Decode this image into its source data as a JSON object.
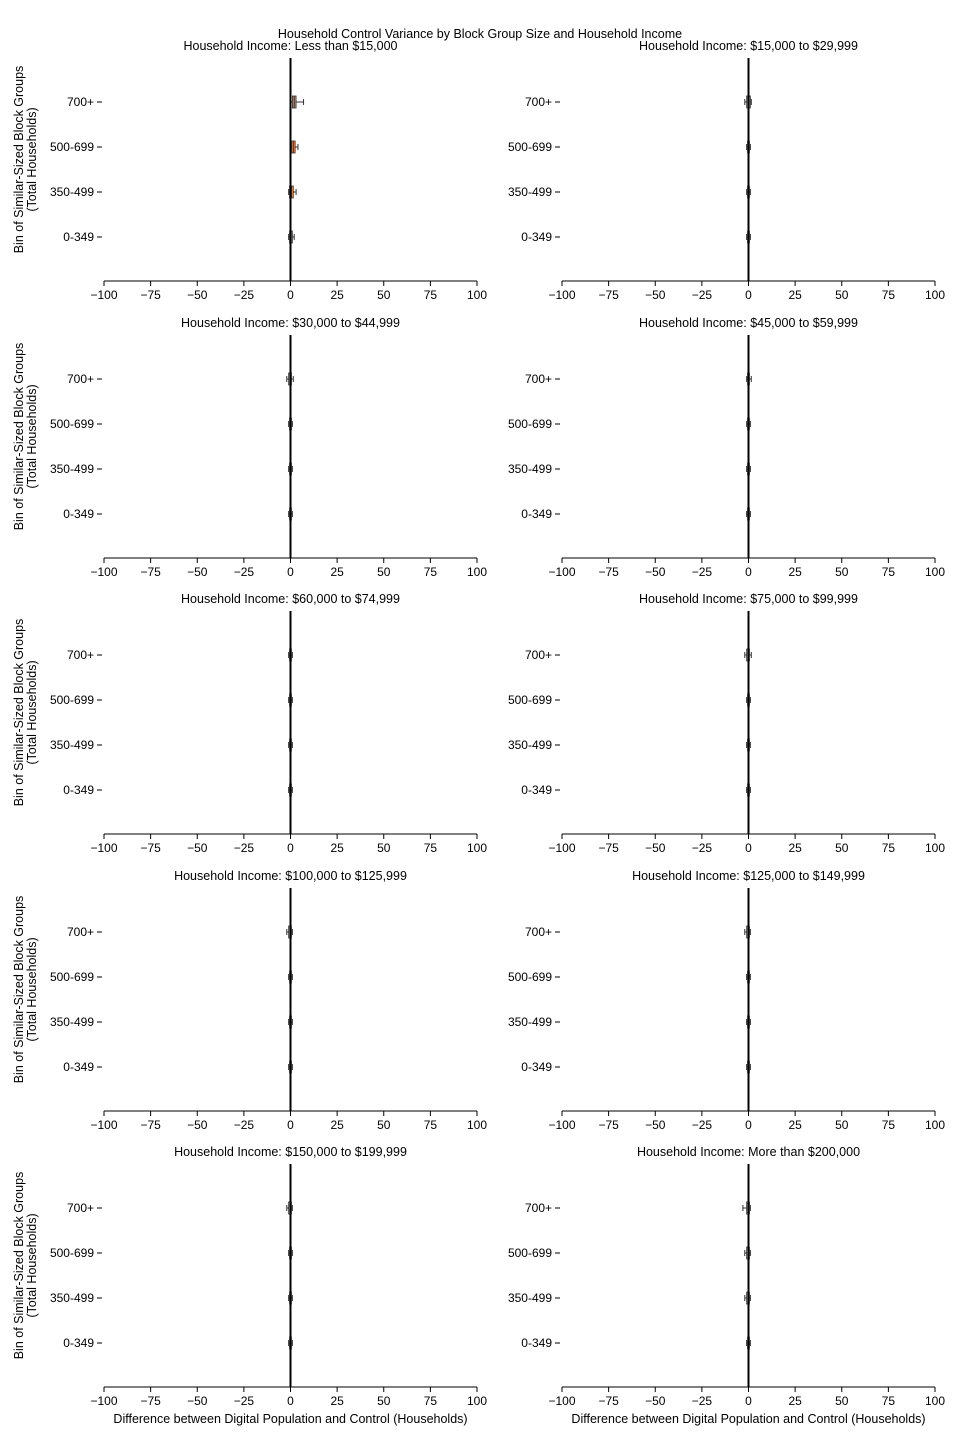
{
  "figure": {
    "suptitle": "Household Control Variance by Block Group Size and Household Income"
  },
  "chart_data": {
    "type": "boxplot",
    "orientation": "horizontal",
    "xlabel": "Difference between Digital Population and Control (Households)",
    "ylabel": "Bin of Similar-Sized Block Groups\n(Total Households)",
    "xlim": [
      -100,
      100
    ],
    "xticks": [
      -100,
      -75,
      -50,
      -25,
      0,
      25,
      50,
      75,
      100
    ],
    "categories": [
      "0-349",
      "350-499",
      "500-699",
      "700+"
    ],
    "grid": false,
    "colors": {
      "box_fill": "#dd8452",
      "box_edge": "#333333",
      "zero_line": "#000000"
    },
    "panels": [
      {
        "title": "Household Income: Less than $15,000",
        "boxes": [
          {
            "category": "0-349",
            "whislo": -1,
            "q1": -0.5,
            "med": 0.3,
            "q3": 1,
            "whishi": 2
          },
          {
            "category": "350-499",
            "whislo": -1,
            "q1": -0.5,
            "med": 0.5,
            "q3": 1.5,
            "whishi": 3
          },
          {
            "category": "500-699",
            "whislo": 0,
            "q1": 0.5,
            "med": 1.5,
            "q3": 2.5,
            "whishi": 4
          },
          {
            "category": "700+",
            "whislo": 0,
            "q1": 1,
            "med": 2,
            "q3": 3,
            "whishi": 7
          }
        ]
      },
      {
        "title": "Household Income: $15,000 to $29,999",
        "boxes": [
          {
            "category": "0-349",
            "whislo": -1,
            "q1": -0.5,
            "med": 0,
            "q3": 0.5,
            "whishi": 1
          },
          {
            "category": "350-499",
            "whislo": -1,
            "q1": -0.5,
            "med": 0,
            "q3": 0.5,
            "whishi": 1
          },
          {
            "category": "500-699",
            "whislo": -1,
            "q1": -0.5,
            "med": 0,
            "q3": 0.5,
            "whishi": 1
          },
          {
            "category": "700+",
            "whislo": -2,
            "q1": -1,
            "med": 0,
            "q3": 1,
            "whishi": 1.5
          }
        ]
      },
      {
        "title": "Household Income: $30,000 to $44,999",
        "boxes": [
          {
            "category": "0-349",
            "whislo": -1,
            "q1": -0.5,
            "med": 0,
            "q3": 0.5,
            "whishi": 1
          },
          {
            "category": "350-499",
            "whislo": -1,
            "q1": -0.5,
            "med": 0,
            "q3": 0.5,
            "whishi": 1
          },
          {
            "category": "500-699",
            "whislo": -1,
            "q1": -0.5,
            "med": 0,
            "q3": 0.5,
            "whishi": 1
          },
          {
            "category": "700+",
            "whislo": -2,
            "q1": -1,
            "med": 0,
            "q3": 0.5,
            "whishi": 1.5
          }
        ]
      },
      {
        "title": "Household Income: $45,000 to $59,999",
        "boxes": [
          {
            "category": "0-349",
            "whislo": -1,
            "q1": -0.5,
            "med": 0,
            "q3": 0.5,
            "whishi": 1
          },
          {
            "category": "350-499",
            "whislo": -1,
            "q1": -0.5,
            "med": 0,
            "q3": 0.5,
            "whishi": 1
          },
          {
            "category": "500-699",
            "whislo": -1,
            "q1": -0.5,
            "med": 0,
            "q3": 0.5,
            "whishi": 1
          },
          {
            "category": "700+",
            "whislo": -1,
            "q1": -0.5,
            "med": 0,
            "q3": 0.5,
            "whishi": 1.5
          }
        ]
      },
      {
        "title": "Household Income: $60,000 to $74,999",
        "boxes": [
          {
            "category": "0-349",
            "whislo": -1,
            "q1": -0.5,
            "med": 0,
            "q3": 0.5,
            "whishi": 1
          },
          {
            "category": "350-499",
            "whislo": -1,
            "q1": -0.5,
            "med": 0,
            "q3": 0.5,
            "whishi": 1
          },
          {
            "category": "500-699",
            "whislo": -1,
            "q1": -0.5,
            "med": 0,
            "q3": 0.5,
            "whishi": 1
          },
          {
            "category": "700+",
            "whislo": -1,
            "q1": -0.5,
            "med": 0,
            "q3": 0.5,
            "whishi": 1
          }
        ]
      },
      {
        "title": "Household Income: $75,000 to $99,999",
        "boxes": [
          {
            "category": "0-349",
            "whislo": -1,
            "q1": -0.5,
            "med": 0,
            "q3": 0.5,
            "whishi": 1
          },
          {
            "category": "350-499",
            "whislo": -1,
            "q1": -0.5,
            "med": 0,
            "q3": 0.5,
            "whishi": 1
          },
          {
            "category": "500-699",
            "whislo": -1,
            "q1": -0.5,
            "med": 0,
            "q3": 0.5,
            "whishi": 1
          },
          {
            "category": "700+",
            "whislo": -2,
            "q1": -1,
            "med": 0,
            "q3": 0.5,
            "whishi": 1.5
          }
        ]
      },
      {
        "title": "Household Income: $100,000 to $125,999",
        "boxes": [
          {
            "category": "0-349",
            "whislo": -1,
            "q1": -0.5,
            "med": 0,
            "q3": 0.5,
            "whishi": 1
          },
          {
            "category": "350-499",
            "whislo": -1,
            "q1": -0.5,
            "med": 0,
            "q3": 0.5,
            "whishi": 1
          },
          {
            "category": "500-699",
            "whislo": -1,
            "q1": -0.5,
            "med": 0,
            "q3": 0.5,
            "whishi": 1
          },
          {
            "category": "700+",
            "whislo": -2,
            "q1": -1,
            "med": 0,
            "q3": 0.5,
            "whishi": 1
          }
        ]
      },
      {
        "title": "Household Income: $125,000 to $149,999",
        "boxes": [
          {
            "category": "0-349",
            "whislo": -1,
            "q1": -0.5,
            "med": 0,
            "q3": 0.5,
            "whishi": 1
          },
          {
            "category": "350-499",
            "whislo": -1,
            "q1": -0.5,
            "med": 0,
            "q3": 0.5,
            "whishi": 1
          },
          {
            "category": "500-699",
            "whislo": -1,
            "q1": -0.5,
            "med": 0,
            "q3": 0.5,
            "whishi": 1
          },
          {
            "category": "700+",
            "whislo": -2,
            "q1": -1,
            "med": 0,
            "q3": 0.5,
            "whishi": 1
          }
        ]
      },
      {
        "title": "Household Income: $150,000 to $199,999",
        "boxes": [
          {
            "category": "0-349",
            "whislo": -1,
            "q1": -0.5,
            "med": 0,
            "q3": 0.5,
            "whishi": 1
          },
          {
            "category": "350-499",
            "whislo": -1,
            "q1": -0.5,
            "med": 0,
            "q3": 0.5,
            "whishi": 1
          },
          {
            "category": "500-699",
            "whislo": -1,
            "q1": -0.5,
            "med": 0,
            "q3": 0.5,
            "whishi": 1
          },
          {
            "category": "700+",
            "whislo": -2,
            "q1": -1,
            "med": 0,
            "q3": 0.5,
            "whishi": 1
          }
        ]
      },
      {
        "title": "Household Income: More than $200,000",
        "boxes": [
          {
            "category": "0-349",
            "whislo": -1,
            "q1": -0.5,
            "med": 0,
            "q3": 0.5,
            "whishi": 1
          },
          {
            "category": "350-499",
            "whislo": -2,
            "q1": -1,
            "med": 0,
            "q3": 0.5,
            "whishi": 1
          },
          {
            "category": "500-699",
            "whislo": -2,
            "q1": -1,
            "med": 0,
            "q3": 0.5,
            "whishi": 1
          },
          {
            "category": "700+",
            "whislo": -3,
            "q1": -1,
            "med": 0,
            "q3": 0.5,
            "whishi": 1
          }
        ]
      }
    ]
  }
}
